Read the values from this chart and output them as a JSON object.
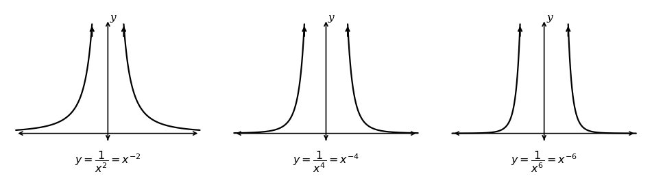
{
  "background_color": "#ffffff",
  "num_plots": 3,
  "exponents": [
    2,
    4,
    6
  ],
  "labels": [
    "y = \\dfrac{1}{x^2} = x^{-2}",
    "y = \\dfrac{1}{x^4} = x^{-4}",
    "y = \\dfrac{1}{x^6} = x^{-6}"
  ],
  "xlim": [
    -3.2,
    3.2
  ],
  "ylim": [
    -0.35,
    3.8
  ],
  "clip_y": 3.5,
  "y_axis_top": 3.65,
  "y_axis_bottom": -0.28,
  "x_axis_right": 3.1,
  "x_axis_left": -3.1,
  "line_color": "#000000",
  "line_width": 1.6,
  "axis_lw": 1.2,
  "arrow_mutation_scale": 9,
  "label_fontsize": 11.5,
  "ylabel_fontsize": 11
}
